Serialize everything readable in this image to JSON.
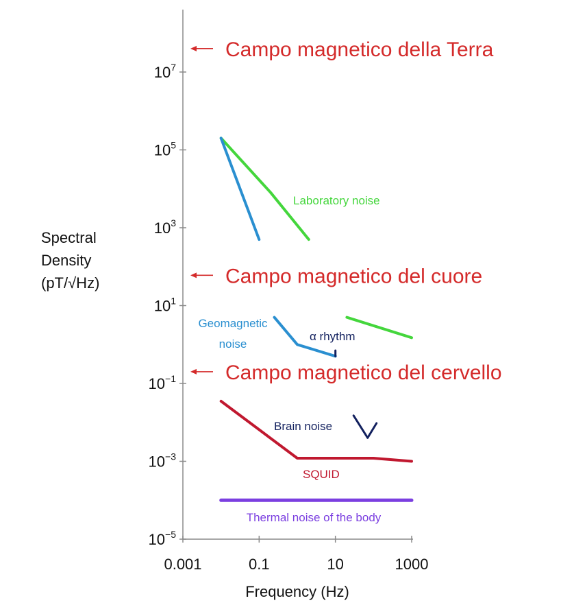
{
  "chart_data": {
    "type": "line",
    "xlabel": "Frequency (Hz)",
    "ylabel_lines": [
      "Spectral",
      "Density",
      "(pT/√Hz)"
    ],
    "x_scale": "log",
    "y_scale": "log",
    "xlim": [
      0.001,
      1000
    ],
    "ylim": [
      1e-05,
      10000000
    ],
    "x_ticks": [
      {
        "value": 0.001,
        "label": "0.001"
      },
      {
        "value": 0.1,
        "label": "0.1"
      },
      {
        "value": 10,
        "label": "10"
      },
      {
        "value": 1000,
        "label": "1000"
      }
    ],
    "y_ticks": [
      {
        "value": 10000000,
        "base": "10",
        "exp": "7"
      },
      {
        "value": 100000,
        "base": "10",
        "exp": "5"
      },
      {
        "value": 1000,
        "base": "10",
        "exp": "3"
      },
      {
        "value": 10,
        "base": "10",
        "exp": "1"
      },
      {
        "value": 0.1,
        "base": "10",
        "exp": "−1"
      },
      {
        "value": 0.001,
        "base": "10",
        "exp": "−3"
      },
      {
        "value": 1e-05,
        "base": "10",
        "exp": "−5"
      }
    ],
    "series": [
      {
        "name": "Laboratory noise",
        "color": "#44d63c",
        "points": [
          [
            0.01,
            200000
          ],
          [
            0.2,
            8000
          ],
          [
            2,
            500
          ],
          [
            20,
            5
          ],
          [
            1000,
            1.5
          ]
        ],
        "gap_after_index": 2
      },
      {
        "name": "Geomagnetic noise",
        "color": "#2a8fd0",
        "points": [
          [
            0.01,
            200000
          ],
          [
            0.1,
            500
          ],
          [
            0.25,
            5
          ],
          [
            1,
            1
          ],
          [
            10,
            0.5
          ]
        ],
        "gap_after_index": 1
      },
      {
        "name": "α rhythm",
        "color": "#12205e",
        "points": [
          [
            10,
            0.5
          ],
          [
            10,
            0.7
          ]
        ],
        "gap_after_index": -1
      },
      {
        "name": "Brain noise",
        "color": "#12205e",
        "points": [
          [
            30,
            0.015
          ],
          [
            70,
            0.004
          ],
          [
            120,
            0.0095
          ]
        ],
        "gap_after_index": -1
      },
      {
        "name": "SQUID",
        "color": "#c0182f",
        "points": [
          [
            0.01,
            0.035
          ],
          [
            1,
            0.0012
          ],
          [
            100,
            0.0012
          ],
          [
            1000,
            0.001
          ]
        ],
        "gap_after_index": -1
      },
      {
        "name": "Thermal noise of the body",
        "color": "#7b3fe0",
        "points": [
          [
            0.01,
            0.0001
          ],
          [
            1000,
            0.0001
          ]
        ],
        "gap_after_index": -1
      }
    ],
    "annotations": [
      {
        "text": "Campo magnetico della Terra",
        "y_value": 40000000,
        "color": "#d42a2a"
      },
      {
        "text": "Campo magnetico del cuore",
        "y_value": 60,
        "color": "#d42a2a"
      },
      {
        "text": "Campo magnetico del cervello",
        "y_value": 0.2,
        "color": "#d42a2a"
      }
    ],
    "axis_color": "#8a8a8a",
    "grid": false
  }
}
